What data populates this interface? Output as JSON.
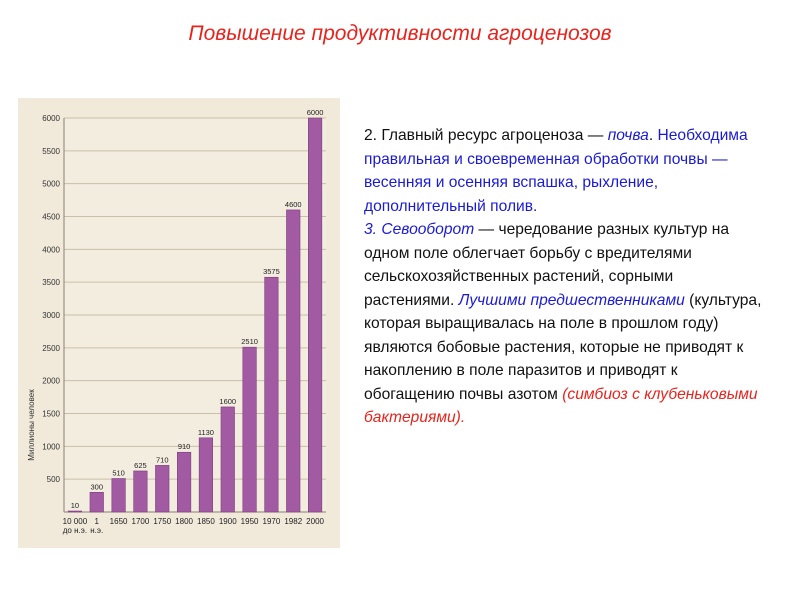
{
  "title": "Повышение продуктивности агроценозов",
  "colors": {
    "title": "#e8231c",
    "bar": "#a25aa3",
    "blue": "#1a1ad6",
    "red": "#e8231c"
  },
  "text": {
    "p1": {
      "s1": "2. Главный ресурс агроценоза — ",
      "s2": "почва",
      "s3": ".",
      "s4": "Необходима правильная и своевременная обработки почвы — весенняя и осенняя вспашка, рыхление, дополнительный полив."
    },
    "p2": {
      "s1": "3. Севооборот",
      "s2": " — чередование разных культур на одном поле облегчает борьбу с вредителями сельскохозяйственных растений, сорными растениями.",
      "s3": "Лучшими предшественниками",
      "s4": " (культура, которая выращивалась на поле в прошлом году) являются бобовые растения, которые не приводят к накоплению в поле паразитов и приводят к обогащению почвы азотом ",
      "s5": "(симбиоз с клубеньковыми бактериями)."
    }
  },
  "chart_data": {
    "type": "bar",
    "ylabel": "Миллионы человек",
    "ylim": [
      0,
      6000
    ],
    "yticks": [
      500,
      1000,
      1500,
      2000,
      2500,
      3000,
      3500,
      4000,
      4500,
      5000,
      5500,
      6000
    ],
    "categories": [
      [
        "10 000",
        "до н.э."
      ],
      [
        "1",
        "н.э."
      ],
      [
        "1650"
      ],
      [
        "1700"
      ],
      [
        "1750"
      ],
      [
        "1800"
      ],
      [
        "1850"
      ],
      [
        "1900"
      ],
      [
        "1950"
      ],
      [
        "1970"
      ],
      [
        "1982"
      ],
      [
        "2000"
      ]
    ],
    "values": [
      10,
      300,
      510,
      625,
      710,
      910,
      1130,
      1600,
      2510,
      3575,
      4600,
      6000
    ],
    "value_labels": [
      "10",
      "300",
      "510",
      "625",
      "710",
      "910",
      "1130",
      "1600",
      "2510",
      "3575",
      "4600",
      "6000"
    ],
    "grid": true
  }
}
